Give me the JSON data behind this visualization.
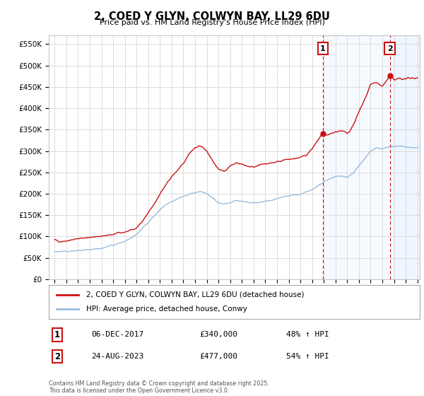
{
  "title": "2, COED Y GLYN, COLWYN BAY, LL29 6DU",
  "subtitle": "Price paid vs. HM Land Registry's House Price Index (HPI)",
  "ytick_labels": [
    "£0",
    "£50K",
    "£100K",
    "£150K",
    "£200K",
    "£250K",
    "£300K",
    "£350K",
    "£400K",
    "£450K",
    "£500K",
    "£550K"
  ],
  "ytick_values": [
    0,
    50000,
    100000,
    150000,
    200000,
    250000,
    300000,
    350000,
    400000,
    450000,
    500000,
    550000
  ],
  "ylim": [
    0,
    570000
  ],
  "xlim_start": 1994.5,
  "xlim_end": 2026.2,
  "bg_color": "#ffffff",
  "plot_bg_color": "#ffffff",
  "grid_color": "#d0d0d0",
  "red_color": "#cc1111",
  "blue_color": "#99bbdd",
  "shade_color": "#ddeeff",
  "sale1_year": 2017.92,
  "sale1_price": 340000,
  "sale2_year": 2023.64,
  "sale2_price": 477000,
  "legend_red": "2, COED Y GLYN, COLWYN BAY, LL29 6DU (detached house)",
  "legend_blue": "HPI: Average price, detached house, Conwy",
  "annotation1_date": "06-DEC-2017",
  "annotation1_price": "£340,000",
  "annotation1_hpi": "48% ↑ HPI",
  "annotation2_date": "24-AUG-2023",
  "annotation2_price": "£477,000",
  "annotation2_hpi": "54% ↑ HPI",
  "footer": "Contains HM Land Registry data © Crown copyright and database right 2025.\nThis data is licensed under the Open Government Licence v3.0."
}
